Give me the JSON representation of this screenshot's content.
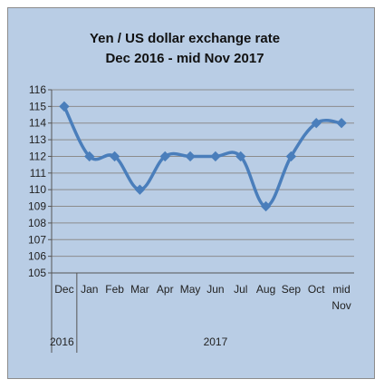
{
  "chart_data": {
    "type": "line",
    "title_lines": [
      "Yen / US dollar exchange rate",
      "Dec 2016 - mid Nov 2017"
    ],
    "categories": [
      "Dec",
      "Jan",
      "Feb",
      "Mar",
      "Apr",
      "May",
      "Jun",
      "Jul",
      "Aug",
      "Sep",
      "Oct",
      "mid Nov"
    ],
    "category_display": [
      [
        "Dec"
      ],
      [
        "Jan"
      ],
      [
        "Feb"
      ],
      [
        "Mar"
      ],
      [
        "Apr"
      ],
      [
        "May"
      ],
      [
        "Jun"
      ],
      [
        "Jul"
      ],
      [
        "Aug"
      ],
      [
        "Sep"
      ],
      [
        "Oct"
      ],
      [
        "mid",
        "Nov"
      ]
    ],
    "year_groups": [
      {
        "label": "2016",
        "start": 0,
        "end": 0
      },
      {
        "label": "2017",
        "start": 1,
        "end": 11
      }
    ],
    "values": [
      115,
      112,
      112,
      110,
      112,
      112,
      112,
      112,
      109,
      112,
      114,
      114
    ],
    "ylim": [
      105,
      116
    ],
    "y_ticks": [
      105,
      106,
      107,
      108,
      109,
      110,
      111,
      112,
      113,
      114,
      115,
      116
    ],
    "y_tick_labels": [
      "105",
      "106",
      "107",
      "108",
      "109",
      "110",
      "111",
      "112",
      "113",
      "114",
      "115",
      "116"
    ],
    "grid": true,
    "legend": "none",
    "colors": {
      "line": "#4a7ebb",
      "marker": "#4a7ebb",
      "background": "#b9cde5",
      "plot_area": "#b9cde5",
      "grid": "#8c8c8c"
    }
  }
}
